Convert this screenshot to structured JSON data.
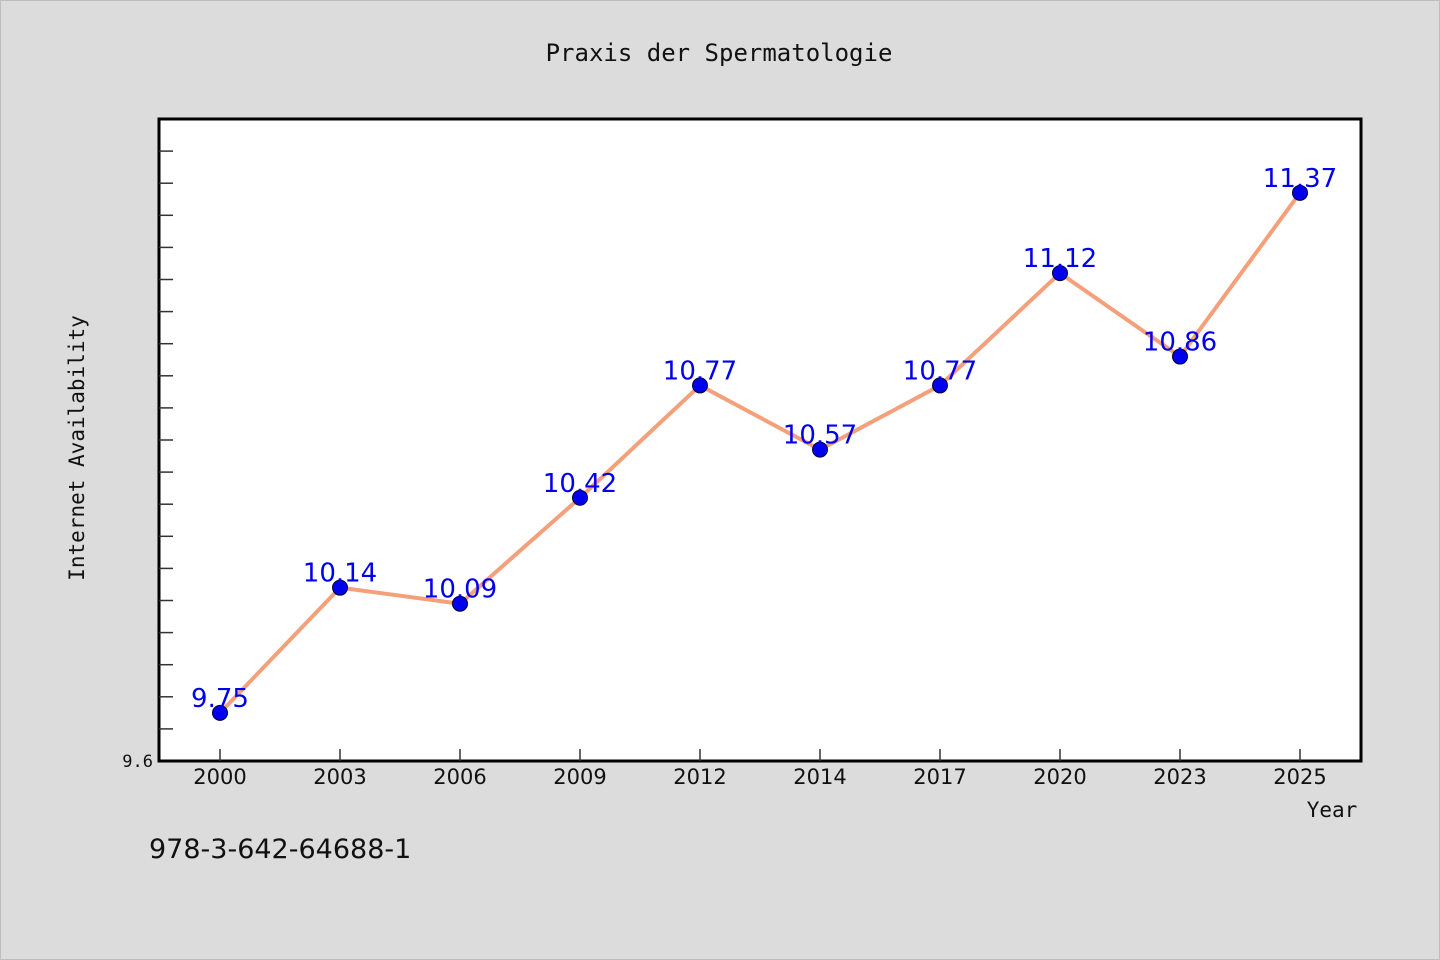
{
  "chart_data": {
    "type": "line",
    "title": "Praxis der Spermatologie",
    "xlabel": "Year",
    "ylabel": "Internet Availability",
    "categories": [
      "2000",
      "2003",
      "2006",
      "2009",
      "2012",
      "2014",
      "2017",
      "2020",
      "2023",
      "2025"
    ],
    "series": [
      {
        "values": [
          9.75,
          10.14,
          10.09,
          10.42,
          10.77,
          10.57,
          10.77,
          11.12,
          10.86,
          11.37
        ],
        "labels": [
          "9.75",
          "10.14",
          "10.09",
          "10.42",
          "10.77",
          "10.57",
          "10.77",
          "11.12",
          "10.86",
          "11.37"
        ],
        "line_color": "#f4a07a",
        "marker_color": "#0000ee",
        "label_color": "#0000ee"
      }
    ],
    "y_tick_labels": [
      "9.6"
    ],
    "ylim": [
      9.6,
      11.6
    ],
    "grid": false,
    "legend": "none"
  },
  "footer": {
    "isbn": "978-3-642-64688-1"
  }
}
